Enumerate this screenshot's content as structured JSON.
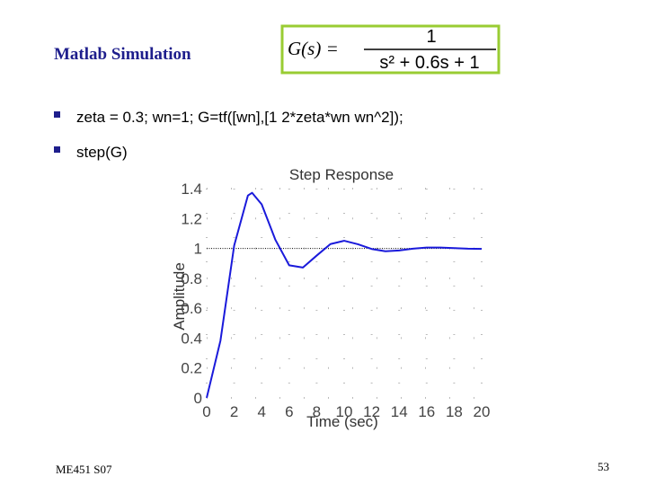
{
  "slide": {
    "title": "Matlab Simulation",
    "formula": {
      "lhs": "G(s) =",
      "numerator": "1",
      "denominator": "s² + 0.6s + 1"
    },
    "bullets": [
      "zeta = 0.3; wn=1; G=tf([wn],[1 2*zeta*wn wn^2]);",
      "step(G)"
    ],
    "footer": "ME451 S07",
    "page_number": "53"
  },
  "chart_data": {
    "type": "line",
    "title": "Step Response",
    "x_label": "Time (sec)",
    "y_label": "Amplitude",
    "x": [
      0,
      1,
      2,
      3,
      3.3,
      4,
      5,
      6,
      7,
      8,
      9,
      10,
      11,
      12,
      13,
      14,
      15,
      16,
      17,
      18,
      19,
      20
    ],
    "values": [
      0,
      0.382,
      1.019,
      1.354,
      1.372,
      1.295,
      1.057,
      0.887,
      0.872,
      0.952,
      1.029,
      1.051,
      1.028,
      0.996,
      0.981,
      0.986,
      0.998,
      1.006,
      1.006,
      1.002,
      0.998,
      0.997
    ],
    "color": "#1a1adb",
    "reference_line": 1,
    "xlim": [
      0,
      20
    ],
    "xticks": [
      0,
      2,
      4,
      6,
      8,
      10,
      12,
      14,
      16,
      18,
      20
    ],
    "ylim": [
      0,
      1.4
    ],
    "yticks": [
      0,
      0.2,
      0.4,
      0.6,
      0.8,
      1,
      1.2,
      1.4
    ],
    "grid": true
  }
}
